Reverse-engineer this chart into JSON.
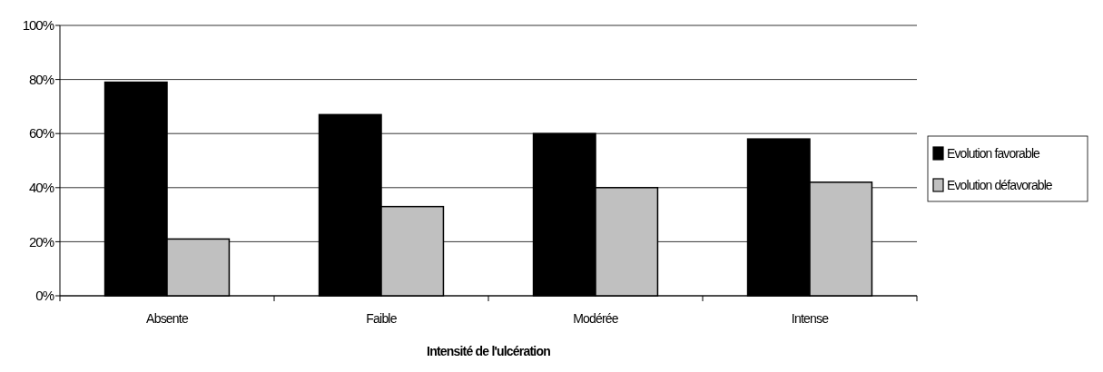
{
  "chart_data": {
    "type": "bar",
    "xlabel": "Intensité de l'ulcération",
    "categories": [
      "Absente",
      "Faible",
      "Modérée",
      "Intense"
    ],
    "series": [
      {
        "name": "Evolution favorable",
        "color": "#000000",
        "values": [
          79,
          67,
          60,
          58
        ]
      },
      {
        "name": "Evolution défavorable",
        "color": "#c0c0c0",
        "values": [
          21,
          33,
          40,
          42
        ]
      }
    ],
    "ylim": [
      0,
      100
    ],
    "yticks": [
      {
        "value": 0,
        "label": "0%"
      },
      {
        "value": 20,
        "label": "20%"
      },
      {
        "value": 40,
        "label": "40%"
      },
      {
        "value": 60,
        "label": "60%"
      },
      {
        "value": 80,
        "label": "80%"
      },
      {
        "value": 100,
        "label": "100%"
      }
    ],
    "grid": "y",
    "legend": "right"
  }
}
